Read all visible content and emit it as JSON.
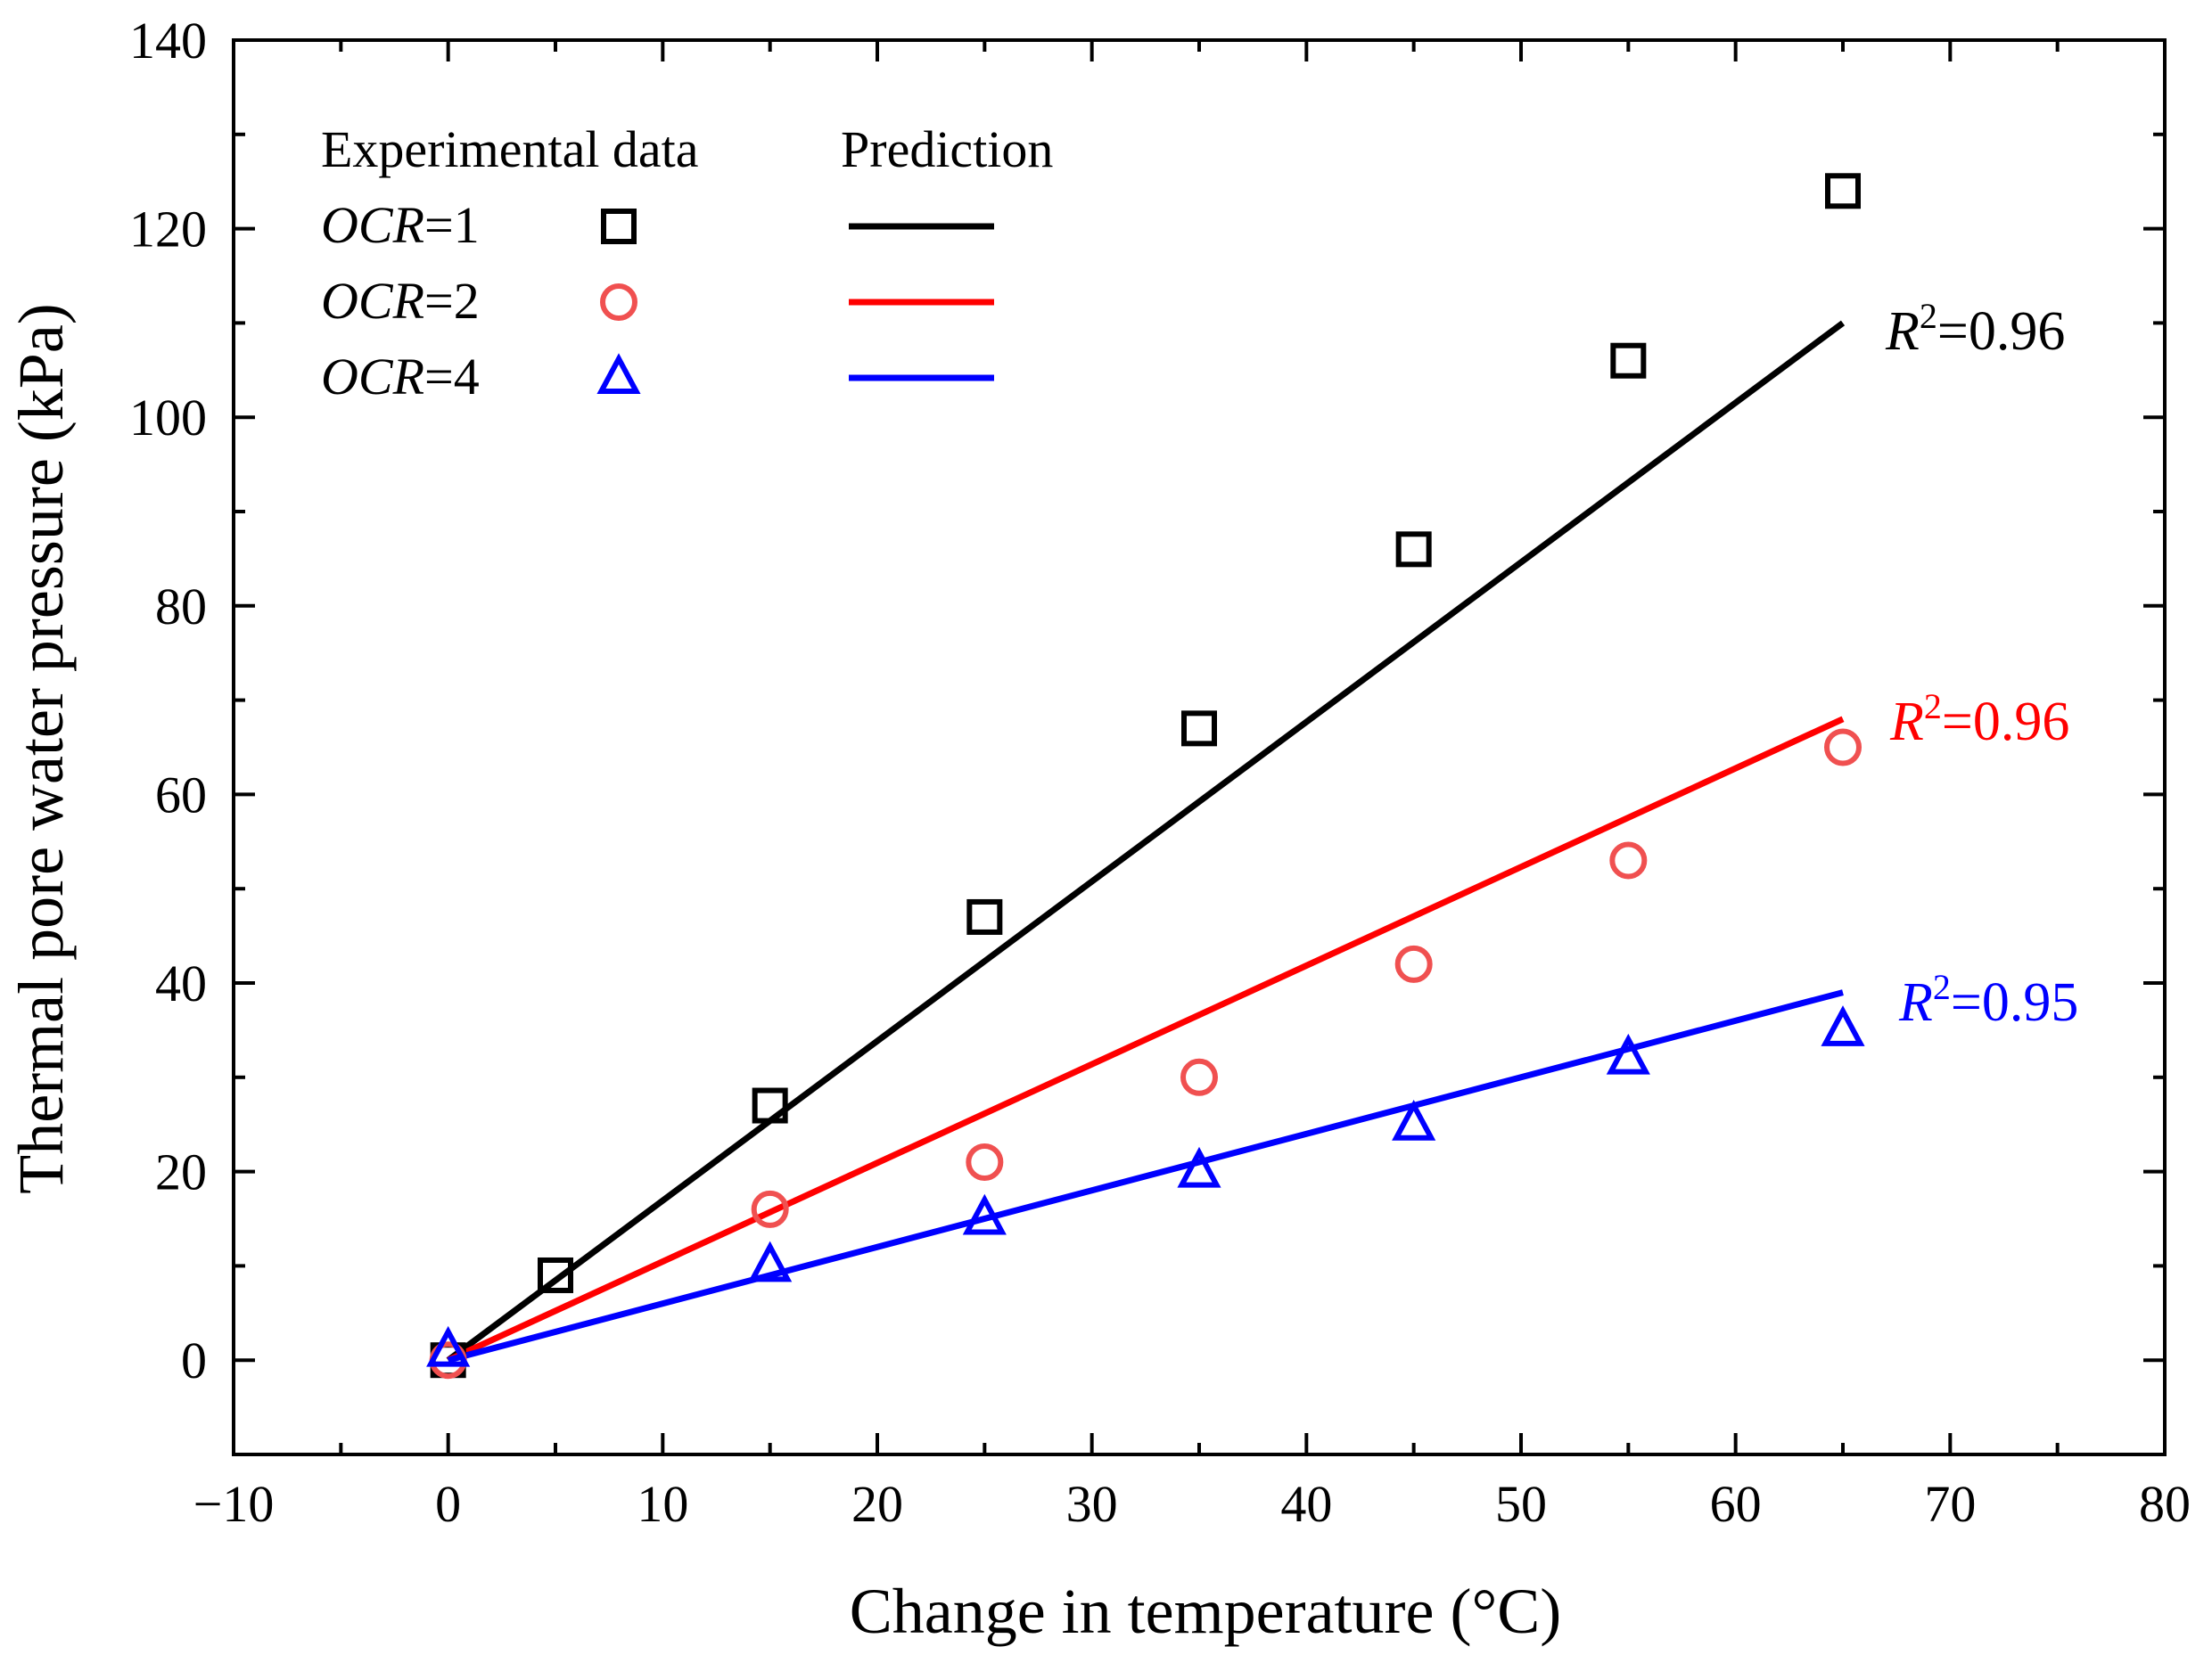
{
  "chart_data": {
    "type": "scatter",
    "title": "",
    "xlabel": "Change in temperature (°C)",
    "ylabel": "Thermal pore water pressure (kPa)",
    "xlim": [
      -10,
      80
    ],
    "ylim": [
      -10,
      140
    ],
    "xticks": [
      -10,
      0,
      10,
      20,
      30,
      40,
      50,
      60,
      70,
      80
    ],
    "xtick_labels": [
      "−10",
      "0",
      "10",
      "20",
      "30",
      "40",
      "50",
      "60",
      "70",
      "80"
    ],
    "yticks": [
      0,
      20,
      40,
      60,
      80,
      100,
      120,
      140
    ],
    "ytick_labels": [
      "0",
      "20",
      "40",
      "60",
      "80",
      "100",
      "120",
      "140"
    ],
    "grid": false,
    "legend": {
      "position": "top-left",
      "header_experimental": "Experimental data",
      "header_prediction": "Prediction"
    },
    "series": [
      {
        "name": "OCR=1",
        "label_var": "OCR",
        "label_rest": "=1",
        "marker": "square",
        "color": "#000000",
        "x": [
          0,
          5,
          15,
          25,
          35,
          45,
          55,
          65
        ],
        "y": [
          0,
          9,
          27,
          47,
          67,
          86,
          106,
          124
        ],
        "prediction": {
          "x": [
            0,
            65
          ],
          "y": [
            0,
            110
          ]
        },
        "r2_var": "R",
        "r2_sup": "2",
        "r2_rest": "=0.96"
      },
      {
        "name": "OCR=2",
        "label_var": "OCR",
        "label_rest": "=2",
        "marker": "circle",
        "color": "#ff0000",
        "x": [
          0,
          15,
          25,
          35,
          45,
          55,
          65
        ],
        "y": [
          0,
          16,
          21,
          30,
          42,
          53,
          65
        ],
        "prediction": {
          "x": [
            0,
            65
          ],
          "y": [
            0,
            68
          ]
        },
        "r2_var": "R",
        "r2_sup": "2",
        "r2_rest": "=0.96"
      },
      {
        "name": "OCR=4",
        "label_var": "OCR",
        "label_rest": "=4",
        "marker": "triangle",
        "color": "#0000ff",
        "x": [
          0,
          15,
          25,
          35,
          45,
          55,
          65
        ],
        "y": [
          1,
          10,
          15,
          20,
          25,
          32,
          35
        ],
        "prediction": {
          "x": [
            0,
            65
          ],
          "y": [
            0,
            39
          ]
        },
        "r2_var": "R",
        "r2_sup": "2",
        "r2_rest": "=0.95"
      }
    ]
  },
  "colors": {
    "axis": "#000000",
    "marker_circle": "#f05050"
  }
}
